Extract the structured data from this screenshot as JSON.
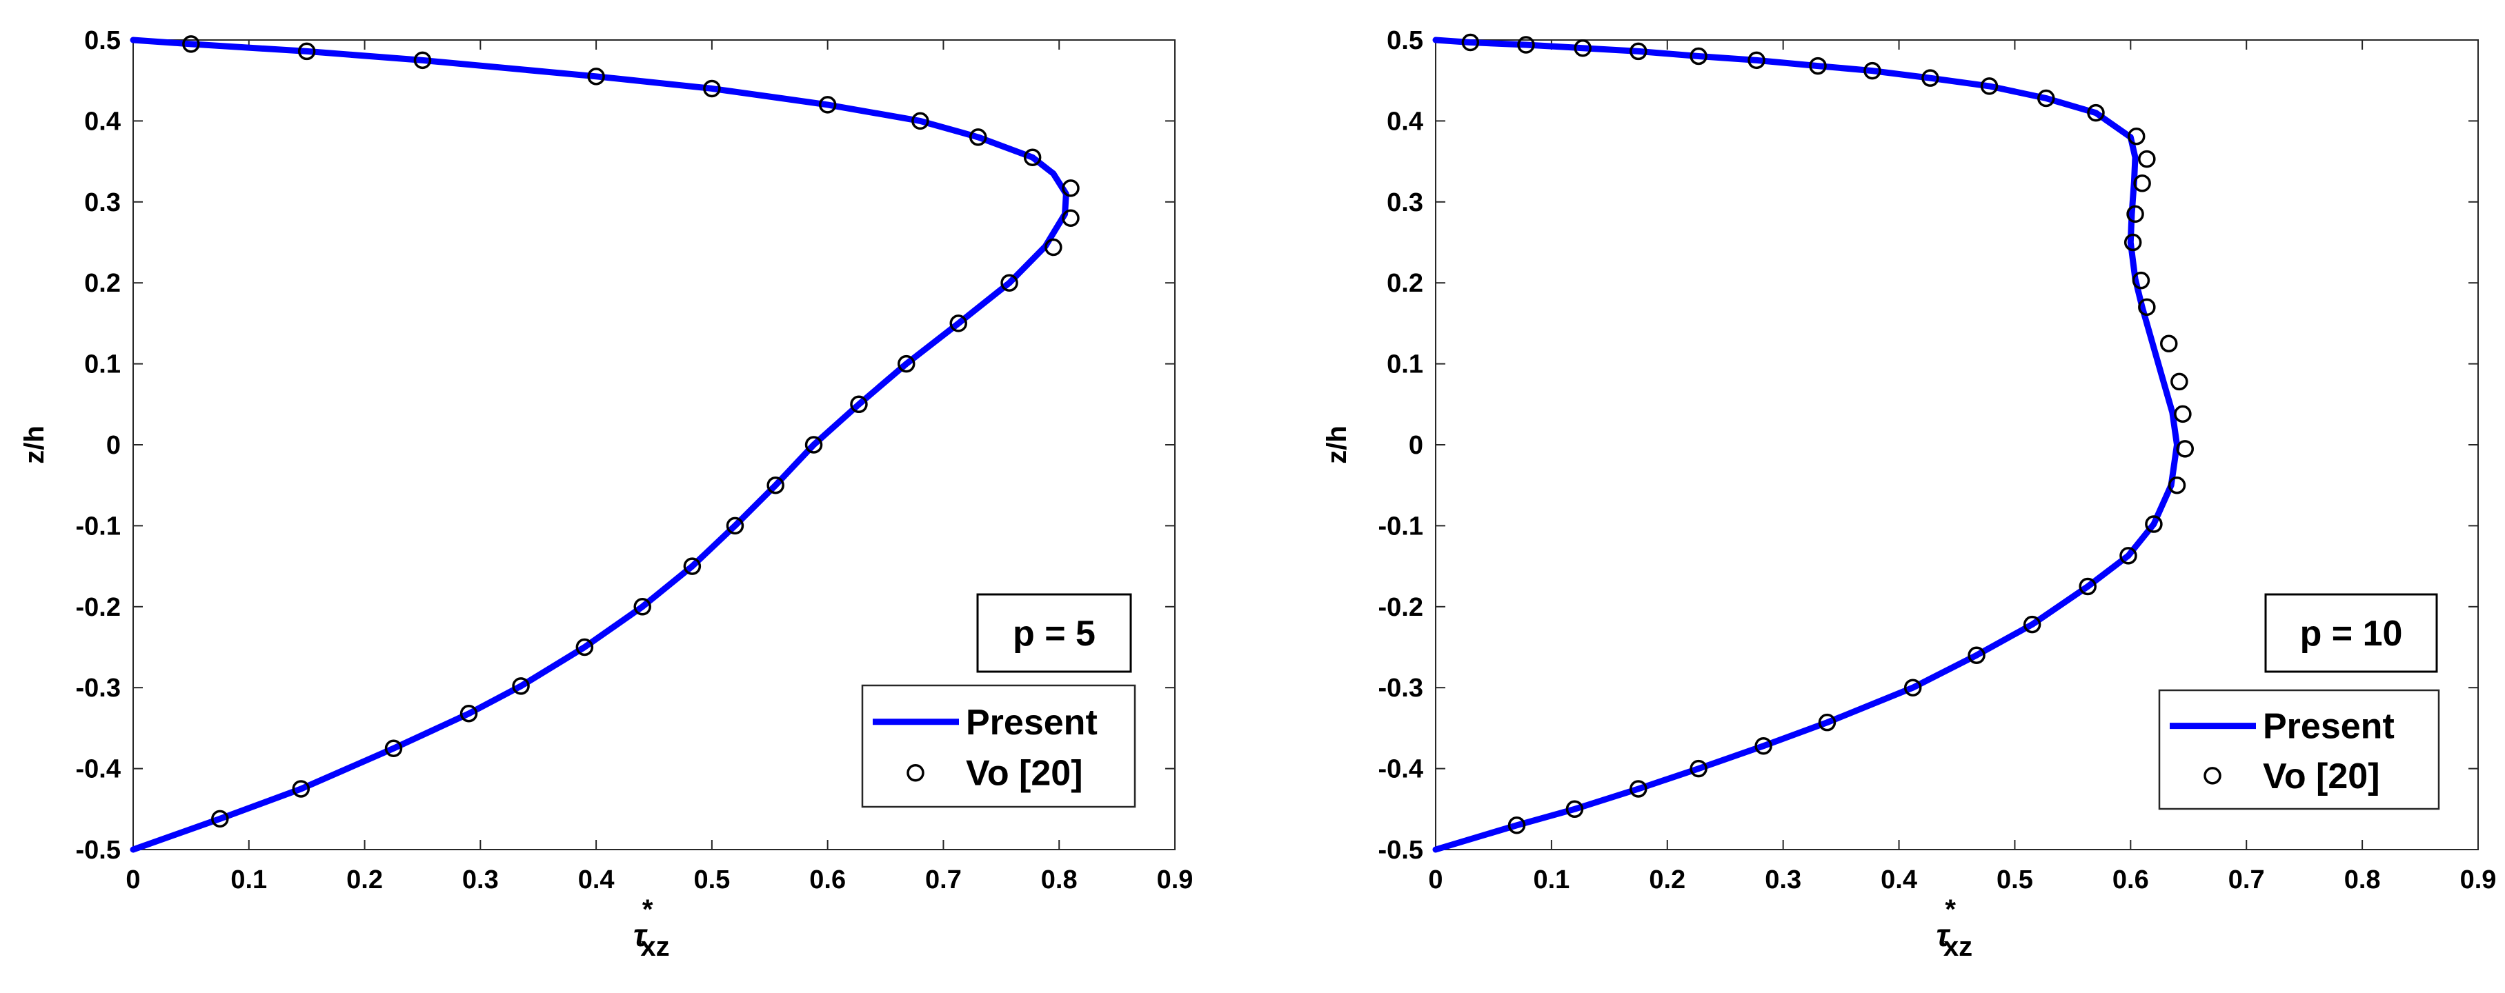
{
  "chart_data": [
    {
      "type": "line",
      "annotation": "p = 5",
      "xlabel": "τ",
      "xlabel_super": "*",
      "xlabel_sub": "xz",
      "ylabel": "z/h",
      "xlim": [
        0,
        0.9
      ],
      "ylim": [
        -0.5,
        0.5
      ],
      "x_ticks": [
        "0",
        "0.1",
        "0.2",
        "0.3",
        "0.4",
        "0.5",
        "0.6",
        "0.7",
        "0.8",
        "0.9"
      ],
      "y_ticks": [
        "-0.5",
        "-0.4",
        "-0.3",
        "-0.2",
        "-0.1",
        "0",
        "0.1",
        "0.2",
        "0.3",
        "0.4",
        "0.5"
      ],
      "legend": [
        "Present",
        "Vo [20]"
      ],
      "legend_position": "bottom-right",
      "series": [
        {
          "name": "Present",
          "style": "line",
          "color": "#0000ff",
          "points": [
            [
              0,
              -0.5
            ],
            [
              0.075,
              -0.462
            ],
            [
              0.145,
              -0.425
            ],
            [
              0.225,
              -0.375
            ],
            [
              0.29,
              -0.332
            ],
            [
              0.335,
              -0.298
            ],
            [
              0.39,
              -0.25
            ],
            [
              0.44,
              -0.2
            ],
            [
              0.483,
              -0.15
            ],
            [
              0.52,
              -0.1
            ],
            [
              0.555,
              -0.05
            ],
            [
              0.588,
              0
            ],
            [
              0.627,
              0.05
            ],
            [
              0.668,
              0.1
            ],
            [
              0.713,
              0.15
            ],
            [
              0.757,
              0.2
            ],
            [
              0.788,
              0.245
            ],
            [
              0.805,
              0.285
            ],
            [
              0.806,
              0.31
            ],
            [
              0.795,
              0.335
            ],
            [
              0.777,
              0.355
            ],
            [
              0.73,
              0.38
            ],
            [
              0.68,
              0.4
            ],
            [
              0.6,
              0.42
            ],
            [
              0.5,
              0.44
            ],
            [
              0.4,
              0.455
            ],
            [
              0.25,
              0.475
            ],
            [
              0.15,
              0.486
            ],
            [
              0.05,
              0.495
            ],
            [
              0,
              0.5
            ]
          ]
        },
        {
          "name": "Vo [20]",
          "style": "marker",
          "color": "#000000",
          "points": [
            [
              0.075,
              -0.462
            ],
            [
              0.145,
              -0.425
            ],
            [
              0.225,
              -0.375
            ],
            [
              0.29,
              -0.332
            ],
            [
              0.335,
              -0.298
            ],
            [
              0.39,
              -0.25
            ],
            [
              0.44,
              -0.2
            ],
            [
              0.483,
              -0.15
            ],
            [
              0.52,
              -0.1
            ],
            [
              0.555,
              -0.05
            ],
            [
              0.588,
              0
            ],
            [
              0.627,
              0.05
            ],
            [
              0.668,
              0.1
            ],
            [
              0.713,
              0.15
            ],
            [
              0.757,
              0.2
            ],
            [
              0.795,
              0.244
            ],
            [
              0.81,
              0.28
            ],
            [
              0.81,
              0.317
            ],
            [
              0.777,
              0.355
            ],
            [
              0.73,
              0.38
            ],
            [
              0.68,
              0.4
            ],
            [
              0.6,
              0.42
            ],
            [
              0.5,
              0.44
            ],
            [
              0.4,
              0.455
            ],
            [
              0.25,
              0.475
            ],
            [
              0.15,
              0.486
            ],
            [
              0.05,
              0.495
            ]
          ]
        }
      ]
    },
    {
      "type": "line",
      "annotation": "p = 10",
      "xlabel": "τ",
      "xlabel_super": "*",
      "xlabel_sub": "xz",
      "ylabel": "z/h",
      "xlim": [
        0,
        0.9
      ],
      "ylim": [
        -0.5,
        0.5
      ],
      "x_ticks": [
        "0",
        "0.1",
        "0.2",
        "0.3",
        "0.4",
        "0.5",
        "0.6",
        "0.7",
        "0.8",
        "0.9"
      ],
      "y_ticks": [
        "-0.5",
        "-0.4",
        "-0.3",
        "-0.2",
        "-0.1",
        "0",
        "0.1",
        "0.2",
        "0.3",
        "0.4",
        "0.5"
      ],
      "legend": [
        "Present",
        "Vo [20]"
      ],
      "legend_position": "bottom-right",
      "series": [
        {
          "name": "Present",
          "style": "line",
          "color": "#0000ff",
          "points": [
            [
              0,
              -0.5
            ],
            [
              0.07,
              -0.47
            ],
            [
              0.12,
              -0.45
            ],
            [
              0.175,
              -0.425
            ],
            [
              0.227,
              -0.4
            ],
            [
              0.283,
              -0.372
            ],
            [
              0.338,
              -0.343
            ],
            [
              0.412,
              -0.3
            ],
            [
              0.467,
              -0.26
            ],
            [
              0.515,
              -0.222
            ],
            [
              0.563,
              -0.175
            ],
            [
              0.598,
              -0.137
            ],
            [
              0.62,
              -0.098
            ],
            [
              0.635,
              -0.05
            ],
            [
              0.64,
              0
            ],
            [
              0.636,
              0.04
            ],
            [
              0.628,
              0.08
            ],
            [
              0.619,
              0.125
            ],
            [
              0.61,
              0.17
            ],
            [
              0.604,
              0.205
            ],
            [
              0.6,
              0.25
            ],
            [
              0.601,
              0.285
            ],
            [
              0.603,
              0.325
            ],
            [
              0.604,
              0.355
            ],
            [
              0.6,
              0.38
            ],
            [
              0.57,
              0.41
            ],
            [
              0.527,
              0.428
            ],
            [
              0.478,
              0.443
            ],
            [
              0.427,
              0.453
            ],
            [
              0.377,
              0.462
            ],
            [
              0.33,
              0.468
            ],
            [
              0.277,
              0.475
            ],
            [
              0.227,
              0.48
            ],
            [
              0.175,
              0.486
            ],
            [
              0.127,
              0.49
            ],
            [
              0.078,
              0.494
            ],
            [
              0.03,
              0.497
            ],
            [
              0,
              0.5
            ]
          ]
        },
        {
          "name": "Vo [20]",
          "style": "marker",
          "color": "#000000",
          "points": [
            [
              0.07,
              -0.47
            ],
            [
              0.12,
              -0.45
            ],
            [
              0.175,
              -0.425
            ],
            [
              0.227,
              -0.4
            ],
            [
              0.283,
              -0.372
            ],
            [
              0.338,
              -0.343
            ],
            [
              0.412,
              -0.3
            ],
            [
              0.467,
              -0.26
            ],
            [
              0.515,
              -0.222
            ],
            [
              0.563,
              -0.175
            ],
            [
              0.598,
              -0.137
            ],
            [
              0.62,
              -0.098
            ],
            [
              0.64,
              -0.05
            ],
            [
              0.647,
              -0.005
            ],
            [
              0.645,
              0.038
            ],
            [
              0.642,
              0.078
            ],
            [
              0.633,
              0.125
            ],
            [
              0.614,
              0.17
            ],
            [
              0.609,
              0.203
            ],
            [
              0.602,
              0.25
            ],
            [
              0.604,
              0.285
            ],
            [
              0.61,
              0.323
            ],
            [
              0.614,
              0.353
            ],
            [
              0.605,
              0.381
            ],
            [
              0.57,
              0.41
            ],
            [
              0.527,
              0.428
            ],
            [
              0.478,
              0.443
            ],
            [
              0.427,
              0.453
            ],
            [
              0.377,
              0.462
            ],
            [
              0.33,
              0.468
            ],
            [
              0.277,
              0.475
            ],
            [
              0.227,
              0.48
            ],
            [
              0.175,
              0.486
            ],
            [
              0.127,
              0.49
            ],
            [
              0.078,
              0.494
            ],
            [
              0.03,
              0.497
            ]
          ]
        }
      ]
    }
  ]
}
